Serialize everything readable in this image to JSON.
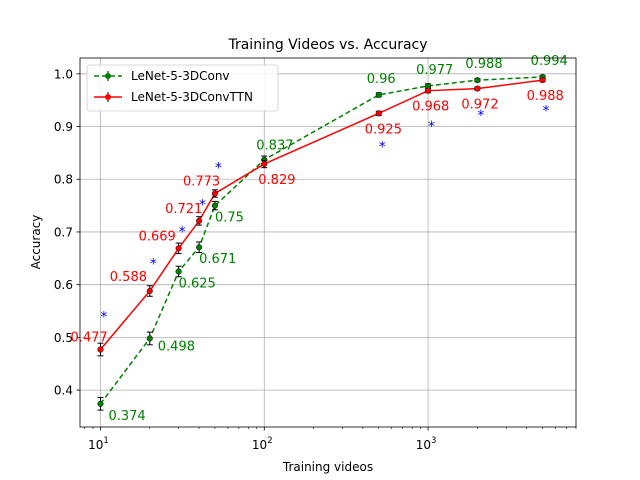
{
  "chart_data": {
    "type": "line",
    "title": "Training Videos vs. Accuracy",
    "xlabel": "Training videos",
    "ylabel": "Accuracy",
    "xscale": "log",
    "xlim": [
      7.5,
      8000
    ],
    "ylim": [
      0.33,
      1.03
    ],
    "grid": true,
    "legend_position": "top-left",
    "x_ticks": [
      {
        "value": 10,
        "base": "10",
        "exp": "1"
      },
      {
        "value": 100,
        "base": "10",
        "exp": "2"
      },
      {
        "value": 1000,
        "base": "10",
        "exp": "3"
      }
    ],
    "y_ticks": [
      "0.4",
      "0.5",
      "0.6",
      "0.7",
      "0.8",
      "0.9",
      "1.0"
    ],
    "series": [
      {
        "name": "LeNet-5-3DConv",
        "color": "#008000",
        "linestyle": "dashed",
        "points": [
          {
            "x": 10,
            "y": 0.374,
            "label": "0.374"
          },
          {
            "x": 20,
            "y": 0.498,
            "label": "0.498"
          },
          {
            "x": 30,
            "y": 0.625,
            "label": "0.625"
          },
          {
            "x": 40,
            "y": 0.671,
            "label": "0.671"
          },
          {
            "x": 50,
            "y": 0.75,
            "label": "0.75"
          },
          {
            "x": 100,
            "y": 0.837,
            "label": "0.837"
          },
          {
            "x": 500,
            "y": 0.96,
            "label": "0.96"
          },
          {
            "x": 1000,
            "y": 0.977,
            "label": "0.977"
          },
          {
            "x": 2000,
            "y": 0.988,
            "label": "0.988"
          },
          {
            "x": 5000,
            "y": 0.994,
            "label": "0.994"
          }
        ],
        "error": [
          0.012,
          0.012,
          0.01,
          0.01,
          0.008,
          0.007,
          0.004,
          0.004,
          0.003,
          0.003
        ]
      },
      {
        "name": "LeNet-5-3DConvTTN",
        "color": "#ff0000",
        "linestyle": "solid",
        "points": [
          {
            "x": 10,
            "y": 0.477,
            "label": "0.477"
          },
          {
            "x": 20,
            "y": 0.588,
            "label": "0.588"
          },
          {
            "x": 30,
            "y": 0.669,
            "label": "0.669"
          },
          {
            "x": 40,
            "y": 0.721,
            "label": "0.721"
          },
          {
            "x": 50,
            "y": 0.773,
            "label": "0.773"
          },
          {
            "x": 100,
            "y": 0.829,
            "label": "0.829"
          },
          {
            "x": 500,
            "y": 0.925,
            "label": "0.925"
          },
          {
            "x": 1000,
            "y": 0.968,
            "label": "0.968"
          },
          {
            "x": 2000,
            "y": 0.972,
            "label": "0.972"
          },
          {
            "x": 5000,
            "y": 0.988,
            "label": "0.988"
          }
        ],
        "error": [
          0.012,
          0.01,
          0.01,
          0.008,
          0.007,
          0.007,
          0.004,
          0.004,
          0.003,
          0.003
        ]
      }
    ],
    "annotations": {
      "marker": "*",
      "color": "#0000ff",
      "points": [
        {
          "x": 10.5,
          "y": 0.545
        },
        {
          "x": 21,
          "y": 0.646
        },
        {
          "x": 31.5,
          "y": 0.707
        },
        {
          "x": 42,
          "y": 0.758
        },
        {
          "x": 52.5,
          "y": 0.828
        },
        {
          "x": 525,
          "y": 0.868
        },
        {
          "x": 1050,
          "y": 0.907
        },
        {
          "x": 2100,
          "y": 0.928
        },
        {
          "x": 5250,
          "y": 0.936
        }
      ]
    }
  }
}
